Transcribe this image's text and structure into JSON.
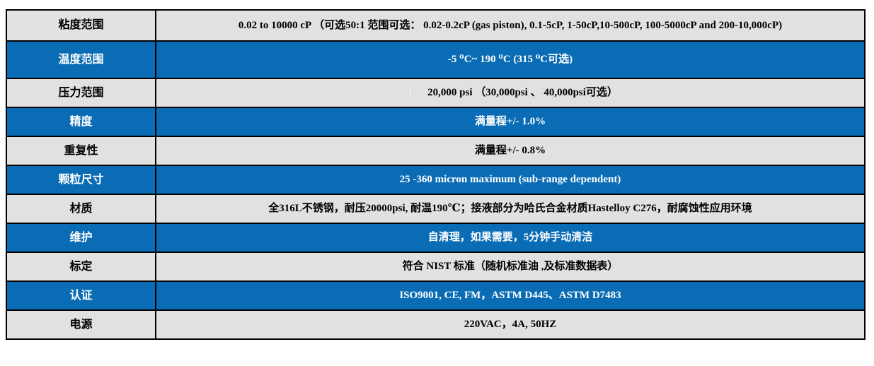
{
  "colors": {
    "row_blue": "#0a6cb4",
    "row_gray": "#e1e1e1",
    "border": "#000000",
    "text_on_gray": "#000000",
    "text_on_blue": "#ffffff"
  },
  "table": {
    "rows": [
      {
        "label": "粘度范围",
        "value": "0.02 to 10000 cP （可选50:1 范围可选：  0.02-0.2cP (gas piston), 0.1-5cP, 1-50cP,10-500cP, 100-5000cP and 200-10,000cP)",
        "variant": "gray"
      },
      {
        "label": "温度范围",
        "value": "-5 ⁰C~ 190 ⁰C (315 ⁰C可选)",
        "variant": "blue"
      },
      {
        "label": "压力范围",
        "prefix": "<!—=",
        "value": "20,000 psi （30,000psi 、 40,000psi可选）",
        "variant": "gray"
      },
      {
        "label": "精度",
        "value": "满量程+/- 1.0%",
        "variant": "blue"
      },
      {
        "label": "重复性",
        "value": "满量程+/- 0.8%",
        "variant": "gray"
      },
      {
        "label": "颗粒尺寸",
        "value": "25 -360 micron maximum (sub-range dependent)",
        "variant": "blue"
      },
      {
        "label": "材质",
        "value": "全316L不锈钢，耐压20000psi, 耐温190℃；接液部分为哈氏合金材质Hastelloy C276，耐腐蚀性应用环境",
        "variant": "gray"
      },
      {
        "label": "维护",
        "value": "自清理，如果需要，5分钟手动清洁",
        "variant": "blue"
      },
      {
        "label": "标定",
        "value": "符合 NIST 标准（随机标准油 ,及标准数据表）",
        "variant": "gray"
      },
      {
        "label": "认证",
        "value": "ISO9001, CE, FM，ASTM D445、ASTM D7483",
        "variant": "blue"
      },
      {
        "label": "电源",
        "value": "220VAC，4A, 50HZ",
        "variant": "gray"
      }
    ]
  }
}
